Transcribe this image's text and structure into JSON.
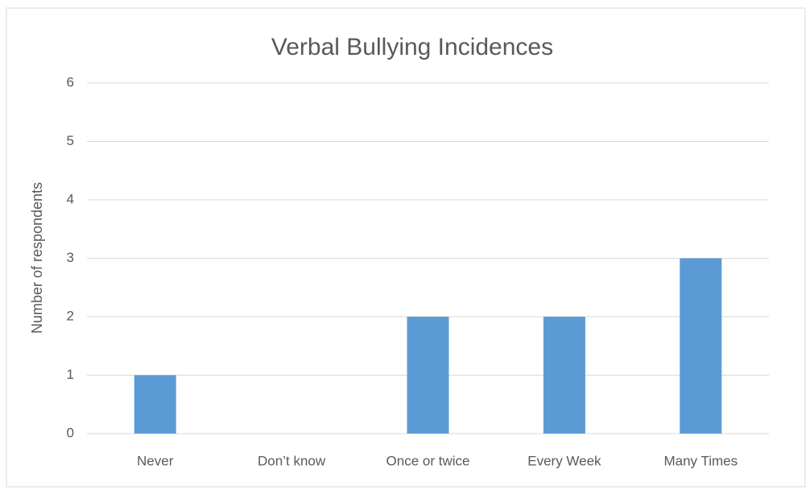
{
  "chart_data": {
    "type": "bar",
    "title": "Verbal Bullying Incidences",
    "y_label": "Number of respondents",
    "categories": [
      "Never",
      "Don’t know",
      "Once or twice",
      "Every Week",
      "Many Times"
    ],
    "values": [
      1,
      0,
      2,
      2,
      3
    ],
    "color": "#5b9bd5",
    "ylim": [
      0,
      6
    ],
    "yticks": [
      0,
      1,
      2,
      3,
      4,
      5,
      6
    ],
    "grid": true
  }
}
